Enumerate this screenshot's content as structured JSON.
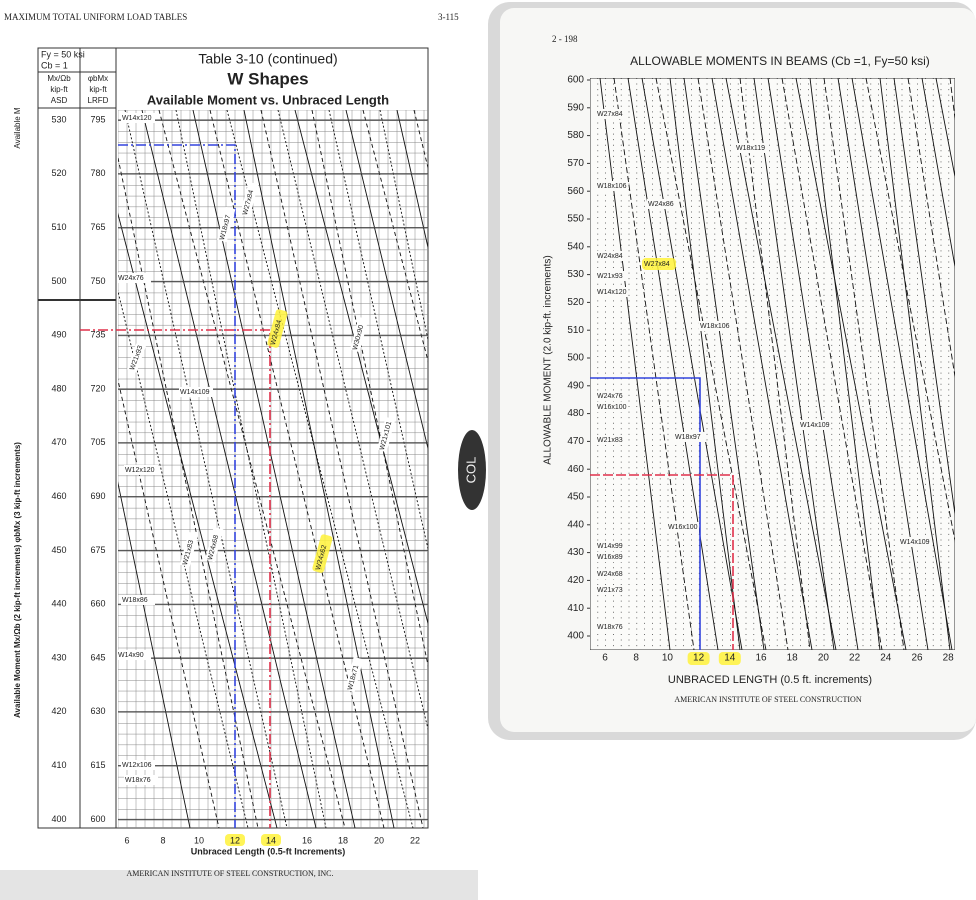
{
  "left_page": {
    "header": "MAXIMUM TOTAL UNIFORM LOAD TABLES",
    "page_number": "3-115",
    "spec": [
      "Fy = 50 ksi",
      "Cb = 1"
    ],
    "columns": [
      {
        "symbol": "Mx/Ωb",
        "unit": "kip-ft",
        "method": "ASD"
      },
      {
        "symbol": "φbMx",
        "unit": "kip-ft",
        "method": "LRFD"
      }
    ],
    "side_label": "Available M",
    "title": "Table 3-10 (continued)",
    "subtitle": "W Shapes",
    "heading": "Available Moment vs. Unbraced Length",
    "asd_ticks": [
      "530",
      "520",
      "510",
      "500",
      "490",
      "480",
      "470",
      "460",
      "450",
      "440",
      "430",
      "420",
      "410",
      "400"
    ],
    "lrfd_ticks": [
      "795",
      "780",
      "765",
      "750",
      "735",
      "720",
      "705",
      "690",
      "675",
      "660",
      "645",
      "630",
      "615",
      "600"
    ],
    "x_ticks": [
      "6",
      "8",
      "10",
      "12",
      "14",
      "16",
      "18",
      "20",
      "22"
    ],
    "x_label": "Unbraced Length (0.5-ft Increments)",
    "y_label": "Available Moment Mx/Ωb (2 kip-ft increments) φbMx (3 kip-ft increments)",
    "shape_labels": [
      "W14x120",
      "W24x76",
      "W21x93",
      "W14x109",
      "W12x120",
      "W18x86",
      "W14x90",
      "W12x106",
      "W18x76",
      "W27x84",
      "W24x84",
      "W24x62",
      "W21x83",
      "W18x97",
      "W30x90",
      "W21x101",
      "W24x68",
      "W18x71"
    ],
    "footer": "AMERICAN INSTITUTE OF STEEL CONSTRUCTION, INC."
  },
  "right_page": {
    "page_number": "2 - 198",
    "title": "ALLOWABLE MOMENTS IN BEAMS (Cb =1, Fy=50 ksi)",
    "y_ticks": [
      "600",
      "590",
      "580",
      "570",
      "560",
      "550",
      "540",
      "530",
      "520",
      "510",
      "500",
      "490",
      "480",
      "470",
      "460",
      "450",
      "440",
      "430",
      "420",
      "410",
      "400"
    ],
    "x_ticks": [
      "6",
      "8",
      "10",
      "12",
      "14",
      "16",
      "18",
      "20",
      "22",
      "24",
      "26",
      "28"
    ],
    "y_label": "ALLOWABLE MOMENT (2.0 kip-ft. increments)",
    "x_label": "UNBRACED LENGTH (0.5 ft. increments)",
    "shape_labels": [
      "W27x84",
      "W18x119",
      "W18x106",
      "W24x86",
      "W24x84",
      "W27x84",
      "W21x93",
      "W14x120",
      "W18x106",
      "W24x76",
      "W16x100",
      "W21x83",
      "W18x97",
      "W14x109",
      "W16x100",
      "W14x99",
      "W16x89",
      "W24x68",
      "W21x73",
      "W18x76",
      "W14x109"
    ],
    "footer": "AMERICAN INSTITUTE OF STEEL CONSTRUCTION"
  },
  "side_tab": "COL"
}
